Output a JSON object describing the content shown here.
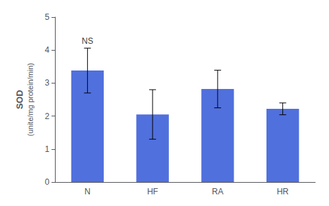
{
  "chart_data": {
    "type": "bar",
    "categories": [
      "N",
      "HF",
      "RA",
      "HR"
    ],
    "values": [
      3.38,
      2.05,
      2.82,
      2.22
    ],
    "errors": [
      0.68,
      0.75,
      0.57,
      0.18
    ],
    "ylabel": "SOD\n(unite/mg protein/min)",
    "ylim": [
      0,
      5
    ],
    "yticks": [
      0,
      1,
      2,
      3,
      4,
      5
    ],
    "annotations": [
      {
        "text": "NS",
        "x": "N",
        "y": 4.14
      }
    ],
    "grid": false
  }
}
